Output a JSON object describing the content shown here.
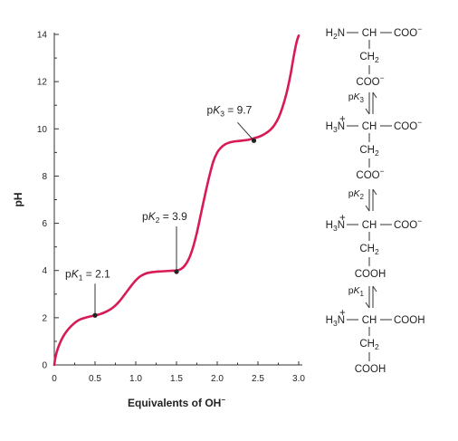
{
  "chart_data": {
    "type": "line",
    "xlabel": "Equivalents of OH",
    "xlabel_sup": "−",
    "ylabel": "pH",
    "xlim": [
      0,
      3
    ],
    "ylim": [
      0,
      14
    ],
    "xticks": [
      "0",
      "0.5",
      "1.0",
      "1.5",
      "2.0",
      "2.5",
      "3.0"
    ],
    "yticks": [
      "0",
      "2",
      "4",
      "6",
      "8",
      "10",
      "12",
      "14"
    ],
    "grid": false,
    "line_color": "#d81b55",
    "series": [
      {
        "x": [
          0.0,
          0.01,
          0.03,
          0.06,
          0.1,
          0.15,
          0.2,
          0.25,
          0.3,
          0.35,
          0.4,
          0.45,
          0.5,
          0.55,
          0.6,
          0.65,
          0.7,
          0.75,
          0.8,
          0.85,
          0.9,
          0.95,
          1.0,
          1.05,
          1.1,
          1.15,
          1.2,
          1.25,
          1.3,
          1.35,
          1.4,
          1.45,
          1.5,
          1.55,
          1.6,
          1.65,
          1.7,
          1.75,
          1.8,
          1.85,
          1.9,
          1.95,
          2.0,
          2.05,
          2.1,
          2.15,
          2.2,
          2.25,
          2.3,
          2.35,
          2.4,
          2.45,
          2.5,
          2.55,
          2.6,
          2.65,
          2.7,
          2.75,
          2.8,
          2.85,
          2.9,
          2.93,
          2.96,
          2.98,
          3.0
        ],
        "y": [
          0.0,
          0.25,
          0.55,
          0.85,
          1.15,
          1.42,
          1.62,
          1.78,
          1.9,
          1.97,
          2.02,
          2.06,
          2.1,
          2.14,
          2.2,
          2.28,
          2.38,
          2.52,
          2.7,
          2.92,
          3.15,
          3.38,
          3.58,
          3.74,
          3.84,
          3.9,
          3.93,
          3.95,
          3.96,
          3.97,
          3.98,
          3.99,
          4.0,
          4.05,
          4.2,
          4.48,
          4.95,
          5.6,
          6.4,
          7.2,
          7.95,
          8.6,
          9.0,
          9.22,
          9.35,
          9.42,
          9.46,
          9.48,
          9.5,
          9.52,
          9.55,
          9.6,
          9.65,
          9.72,
          9.82,
          9.95,
          10.15,
          10.45,
          10.9,
          11.5,
          12.3,
          12.9,
          13.45,
          13.75,
          13.95
        ]
      }
    ],
    "annotations": [
      {
        "label": "pK",
        "sub": "1",
        "rest": " = 2.1",
        "x": 0.5,
        "y": 2.1
      },
      {
        "label": "pK",
        "sub": "2",
        "rest": " = 3.9",
        "x": 1.5,
        "y": 3.95
      },
      {
        "label": "pK",
        "sub": "3",
        "rest": " = 9.7",
        "x": 2.45,
        "y": 9.5
      }
    ]
  },
  "structures": [
    {
      "left": "H",
      "left_sub": "2",
      "left_rest": "N",
      "charge": "",
      "right": "COO",
      "right_sup": "−",
      "side_mid": "CH",
      "side_mid_sub": "2",
      "side_end": "COO",
      "side_end_sup": "−"
    },
    {
      "left": "H",
      "left_sub": "3",
      "left_rest": "N",
      "charge": "+",
      "right": "COO",
      "right_sup": "−",
      "side_mid": "CH",
      "side_mid_sub": "2",
      "side_end": "COO",
      "side_end_sup": "−"
    },
    {
      "left": "H",
      "left_sub": "3",
      "left_rest": "N",
      "charge": "+",
      "right": "COO",
      "right_sup": "−",
      "side_mid": "CH",
      "side_mid_sub": "2",
      "side_end": "COOH",
      "side_end_sup": ""
    },
    {
      "left": "H",
      "left_sub": "3",
      "left_rest": "N",
      "charge": "+",
      "right": "COOH",
      "right_sup": "",
      "side_mid": "CH",
      "side_mid_sub": "2",
      "side_end": "COOH",
      "side_end_sup": ""
    }
  ],
  "center_label": "CH",
  "equilibria": [
    {
      "label": "pK",
      "sub": "3"
    },
    {
      "label": "pK",
      "sub": "2"
    },
    {
      "label": "pK",
      "sub": "1"
    }
  ]
}
